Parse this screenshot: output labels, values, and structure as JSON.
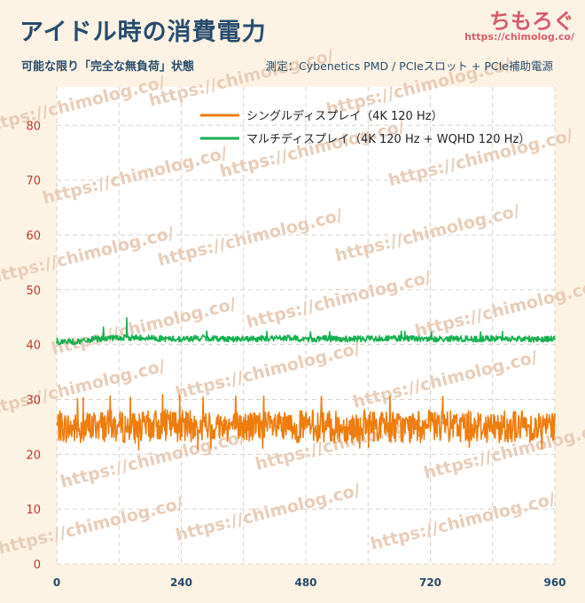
{
  "header": {
    "title": "アイドル時の消費電力",
    "subtitle": "可能な限り「完全な無負荷」状態",
    "method": "測定：Cybenetics PMD / PCIeスロット + PCIe補助電源",
    "brand": "ちもろぐ",
    "brand_url": "https://chimolog.co/"
  },
  "watermark": "https://chimolog.co/",
  "colors": {
    "background": "#fdf3e4",
    "plot_bg": "#ffffff",
    "single": "#ee7d0e",
    "multi": "#16b04f",
    "grid": "#d9cfc6"
  },
  "chart_data": {
    "type": "line",
    "title": "アイドル時の消費電力",
    "xlabel": "",
    "ylabel": "",
    "xlim": [
      0,
      960
    ],
    "ylim": [
      0,
      87
    ],
    "xticks": [
      "0",
      "240",
      "480",
      "720",
      "960"
    ],
    "yticks": [
      "0",
      "10",
      "20",
      "30",
      "40",
      "50",
      "60",
      "70",
      "80"
    ],
    "grid": true,
    "legend_position": "top-left",
    "series": [
      {
        "name": "シングルディスプレイ（4K 120 Hz）",
        "color": "#ee7d0e",
        "x_start": 0,
        "x_step": 40,
        "values": [
          25.1,
          24.6,
          25.3,
          25.0,
          24.8,
          25.4,
          25.2,
          24.9,
          25.3,
          25.0,
          25.1,
          24.7,
          25.2,
          25.0,
          24.9,
          25.3,
          25.1,
          24.8,
          25.2,
          25.0,
          25.3,
          24.9,
          25.2,
          25.1,
          25.0
        ],
        "min": 21,
        "max": 31
      },
      {
        "name": "マルチディスプレイ（4K 120 Hz + WQHD 120 Hz）",
        "color": "#16b04f",
        "x_start": 0,
        "x_step": 40,
        "values": [
          40.6,
          40.5,
          41.1,
          41.2,
          41.3,
          41.1,
          41.0,
          41.2,
          41.1,
          41.0,
          41.1,
          41.2,
          41.0,
          41.1,
          41.0,
          41.1,
          41.2,
          41.1,
          41.0,
          41.1,
          41.0,
          41.1,
          41.1,
          41.0,
          41.1
        ],
        "max": 45
      }
    ]
  }
}
